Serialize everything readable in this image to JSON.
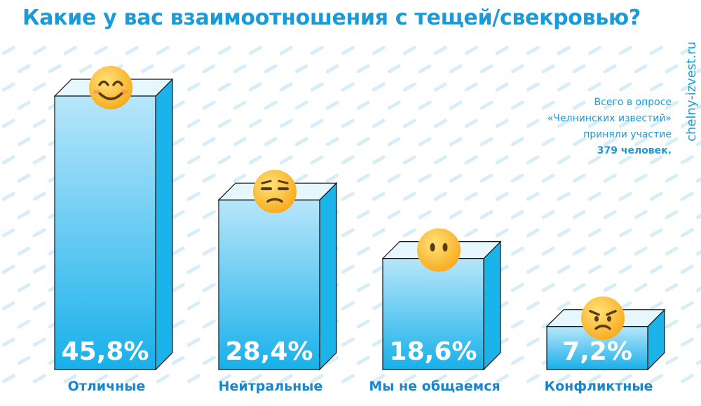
{
  "title": "Какие у вас взаимоотношения с тещей/свекровью?",
  "watermark": "chelny-izvest.ru",
  "note": {
    "line1": "Всего в опросе",
    "line2": "«Челнинских известий»",
    "line3": "приняли участие",
    "line4": "379 человек."
  },
  "colors": {
    "accent": "#1a9ad6",
    "bar_front_top": "#b8e6fb",
    "bar_front_bottom": "#18b0ea",
    "bar_side": "#1ab3ea",
    "bar_top": "#e6f7fe",
    "emoji_face": "#ffce3a"
  },
  "chart_data": {
    "type": "bar",
    "categories": [
      "Отличные",
      "Нейтральные",
      "Мы не общаемся",
      "Конфликтные"
    ],
    "values": [
      45.8,
      28.4,
      18.6,
      7.2
    ],
    "value_labels": [
      "45,8%",
      "28,4%",
      "18,6%",
      "7,2%"
    ],
    "icons": [
      "smiling-face-icon",
      "unamused-face-icon",
      "neutral-face-icon",
      "angry-face-icon"
    ],
    "unit": "%",
    "ylim": [
      0,
      45.8
    ],
    "grid": false,
    "legend": "none"
  }
}
